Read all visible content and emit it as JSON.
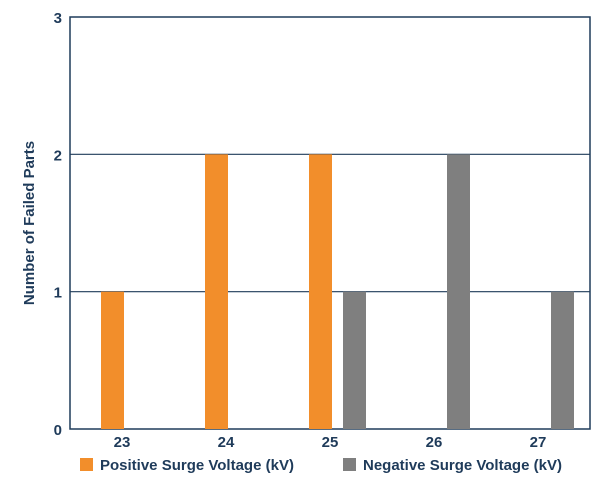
{
  "chart_data": {
    "type": "bar",
    "title": "",
    "xlabel": "",
    "ylabel": "Number of Failed Parts",
    "categories": [
      "23",
      "24",
      "25",
      "26",
      "27"
    ],
    "series": [
      {
        "name": "Positive Surge Voltage (kV)",
        "color": "#f28e2b",
        "values": [
          1,
          2,
          2,
          0,
          0
        ]
      },
      {
        "name": "Negative Surge Voltage (kV)",
        "color": "#7f7f7f",
        "values": [
          0,
          0,
          1,
          2,
          1
        ]
      }
    ],
    "ylim": [
      0,
      3
    ],
    "yticks": [
      0,
      1,
      2,
      3
    ],
    "grid": true,
    "legend_position": "bottom"
  }
}
